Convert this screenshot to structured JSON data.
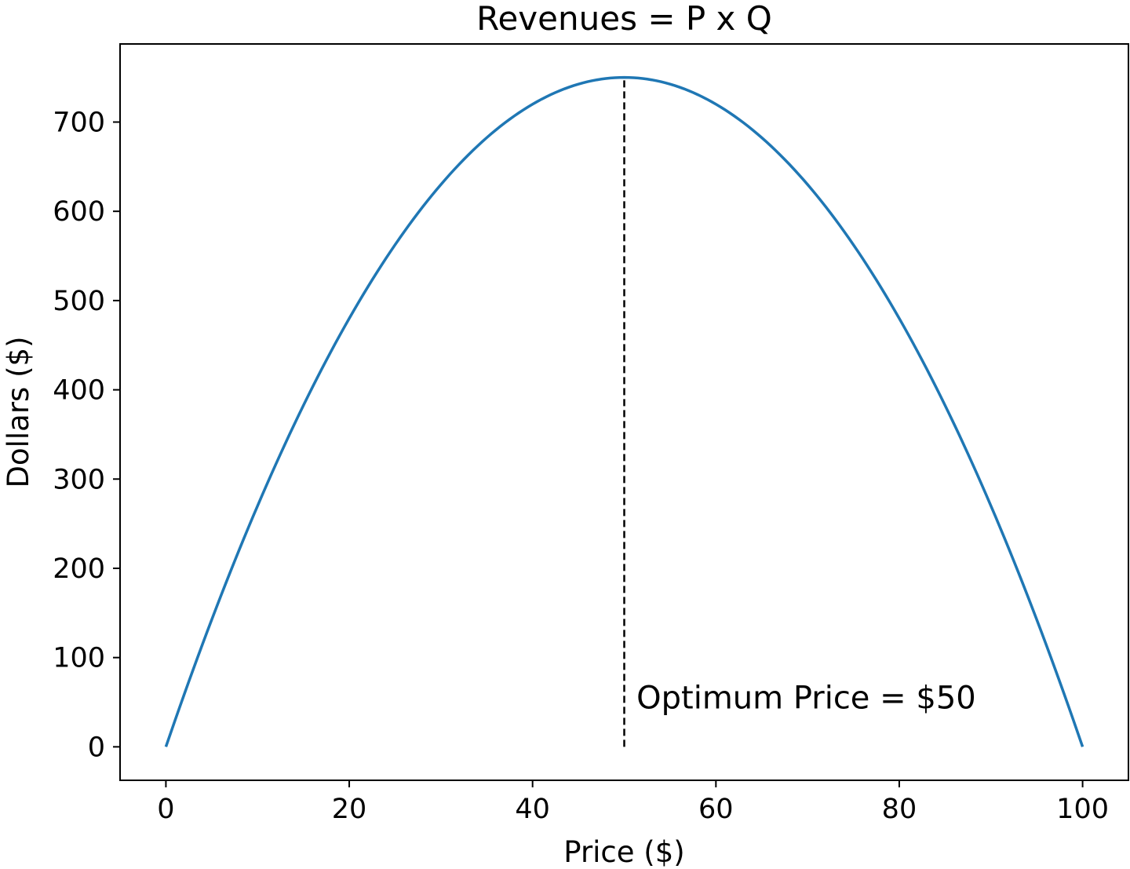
{
  "chart_data": {
    "type": "line",
    "title": "Revenues = P x Q",
    "xlabel": "Price ($)",
    "ylabel": "Dollars ($)",
    "xlim": [
      -5,
      105
    ],
    "ylim": [
      -37.5,
      787.5
    ],
    "x_ticks": [
      0,
      20,
      40,
      60,
      80,
      100
    ],
    "x_tick_labels": [
      "0",
      "20",
      "40",
      "60",
      "80",
      "100"
    ],
    "y_ticks": [
      0,
      100,
      200,
      300,
      400,
      500,
      600,
      700
    ],
    "y_tick_labels": [
      "0",
      "100",
      "200",
      "300",
      "400",
      "500",
      "600",
      "700"
    ],
    "grid": false,
    "series": [
      {
        "color": "#1f77b4",
        "x": [
          0,
          5,
          10,
          15,
          20,
          25,
          30,
          35,
          40,
          45,
          50,
          55,
          60,
          65,
          70,
          75,
          80,
          85,
          90,
          95,
          100
        ],
        "values": [
          0,
          142.5,
          270,
          382.5,
          480,
          562.5,
          630,
          682.5,
          720,
          742.5,
          750,
          742.5,
          720,
          682.5,
          630,
          562.5,
          480,
          382.5,
          270,
          142.5,
          0
        ]
      }
    ],
    "vline": {
      "x": 50,
      "y_from": 0,
      "y_to": 750,
      "style": "dashed",
      "color": "#000000"
    },
    "annotation": {
      "text": "Optimum Price = $50",
      "x": 51,
      "y": 50
    }
  }
}
